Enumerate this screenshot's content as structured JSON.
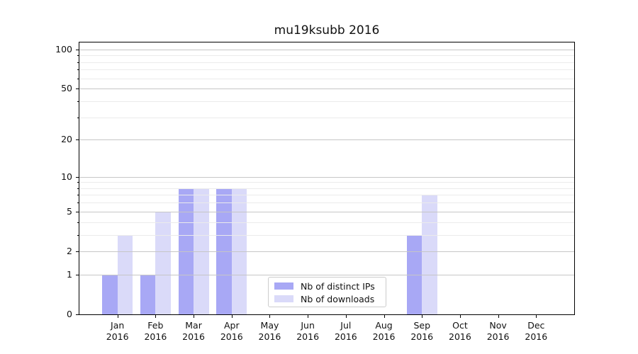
{
  "chart_data": {
    "type": "bar",
    "title": "mu19ksubb 2016",
    "categories": [
      "Jan",
      "Feb",
      "Mar",
      "Apr",
      "May",
      "Jun",
      "Jul",
      "Aug",
      "Sep",
      "Oct",
      "Nov",
      "Dec"
    ],
    "x_tick_second_line": "2016",
    "series": [
      {
        "name": "Nb of distinct IPs",
        "color": "#a8a8f5",
        "values": [
          1,
          1,
          8,
          8,
          0,
          0,
          0,
          0,
          3,
          0,
          0,
          0
        ]
      },
      {
        "name": "Nb of downloads",
        "color": "#dadaf9",
        "values": [
          3,
          5,
          8,
          8,
          0,
          0,
          0,
          0,
          7,
          0,
          0,
          0
        ]
      }
    ],
    "xlabel": "",
    "ylabel": "",
    "yscale": "log1p",
    "ylim": [
      0,
      113
    ],
    "yticks": [
      0,
      1,
      2,
      5,
      10,
      20,
      50,
      100
    ],
    "yticks_minor": [
      3,
      4,
      6,
      7,
      8,
      9,
      30,
      40,
      60,
      70,
      80,
      90
    ],
    "grid": true,
    "legend_position": "lower center",
    "bar_width_fraction": 0.4
  }
}
